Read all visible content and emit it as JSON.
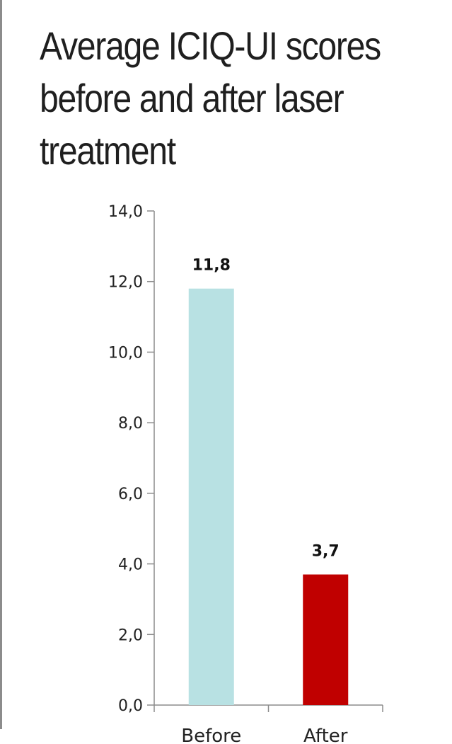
{
  "title_lines": [
    "Average ICIQ-UI scores",
    "before and after laser",
    "treatment"
  ],
  "colors": {
    "before": "#b8e1e3",
    "after": "#c00000"
  },
  "chart_data": {
    "type": "bar",
    "title": "Average ICIQ-UI scores before and after laser treatment",
    "categories": [
      "Before",
      "After"
    ],
    "values": [
      11.8,
      3.7
    ],
    "value_labels": [
      "11,8",
      "3,7"
    ],
    "ylim": [
      0,
      14
    ],
    "yticks": [
      0,
      2,
      4,
      6,
      8,
      10,
      12,
      14
    ],
    "ytick_labels": [
      "0,0",
      "2,0",
      "4,0",
      "6,0",
      "8,0",
      "10,0",
      "12,0",
      "14,0"
    ],
    "xlabel": "",
    "ylabel": "",
    "grid": false,
    "legend": "none"
  }
}
